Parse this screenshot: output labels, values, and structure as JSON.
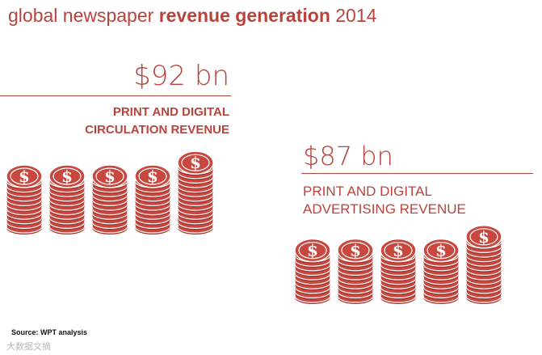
{
  "title": {
    "pre": "global newspaper ",
    "bold": "revenue generation",
    "post": " 2014"
  },
  "circulation": {
    "amount": "$92 bn",
    "line1": "PRINT AND DIGITAL",
    "line2": "CIRCULATION REVENUE"
  },
  "advertising": {
    "amount": "$87 bn",
    "line1": "PRINT AND DIGITAL",
    "line2": "ADVERTISING REVENUE"
  },
  "coin_symbol": "$",
  "source": "Source: WPT analysis",
  "watermark": "大数据文摘",
  "colors": {
    "accent": "#b8433d",
    "coin": "#c8473f",
    "coin_dark": "#a8352f"
  }
}
